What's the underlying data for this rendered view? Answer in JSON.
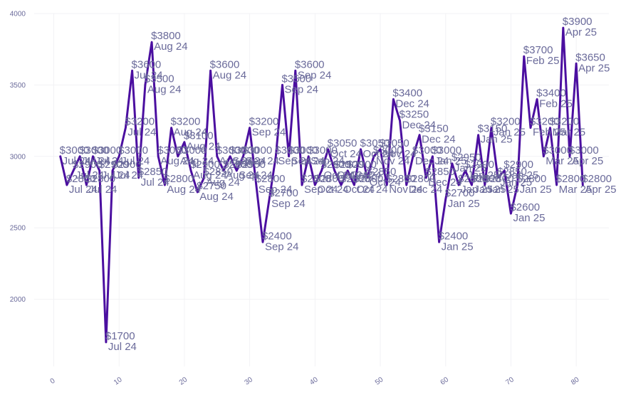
{
  "chart_data": {
    "type": "line",
    "title": "",
    "xlabel": "",
    "ylabel": "",
    "xlim": [
      -3,
      85
    ],
    "ylim": [
      1530,
      4000
    ],
    "grid": true,
    "xticks": [
      0,
      10,
      20,
      30,
      40,
      50,
      60,
      70,
      80
    ],
    "yticks": [
      2000,
      2500,
      3000,
      3500,
      4000
    ],
    "colors": {
      "line": "#4b0fa0",
      "label": "#6a6a9a",
      "grid": "#f2f2f5"
    },
    "series": [
      {
        "x": [
          1,
          2,
          3,
          4,
          5,
          6,
          7,
          8,
          9,
          10,
          11,
          12,
          13,
          14,
          15,
          16,
          17,
          18,
          19,
          20,
          21,
          22,
          23,
          24,
          25,
          26,
          27,
          28,
          29,
          30,
          31,
          32,
          33,
          34,
          35,
          36,
          37,
          38,
          39,
          40,
          41,
          42,
          43,
          44,
          45,
          46,
          47,
          48,
          49,
          50,
          51,
          52,
          53,
          54,
          55,
          56,
          57,
          58,
          59,
          60,
          61,
          62,
          63,
          64,
          65,
          66,
          67,
          68,
          69,
          70,
          71,
          72,
          73,
          74,
          75,
          76,
          77,
          78,
          79,
          80,
          81
        ],
        "values": [
          3000,
          2800,
          2900,
          3000,
          2800,
          3000,
          2900,
          1700,
          2900,
          3000,
          3200,
          3600,
          2850,
          3500,
          3800,
          3000,
          2800,
          3200,
          3000,
          3100,
          2900,
          2750,
          2850,
          3600,
          3000,
          2900,
          3000,
          2900,
          3000,
          3200,
          2800,
          2400,
          2700,
          3000,
          3500,
          3000,
          3600,
          2800,
          3000,
          2800,
          2900,
          3050,
          2900,
          2800,
          2900,
          2800,
          3050,
          2850,
          3000,
          3050,
          2800,
          3400,
          3250,
          2800,
          3000,
          3150,
          2850,
          3000,
          2400,
          2700,
          2950,
          2800,
          2900,
          2800,
          3150,
          2800,
          3200,
          2850,
          2900,
          2600,
          2800,
          3700,
          3200,
          3400,
          3000,
          3200,
          2800,
          3900,
          3000,
          3650,
          2800
        ],
        "labels": [
          [
            "$3000",
            "Jul 24"
          ],
          [
            "$2800",
            "Jul 24"
          ],
          [
            "$2900",
            "Jul 24"
          ],
          [
            "$3000",
            "Jul 24"
          ],
          [
            "$2800",
            "Jul 24"
          ],
          [
            "$3000",
            "Jul 24"
          ],
          [
            "$2900",
            "Jul 24"
          ],
          [
            "$1700",
            "Jul 24"
          ],
          [
            "$2900",
            "Jul 24"
          ],
          [
            "$3000",
            "Jul 24"
          ],
          [
            "$3200",
            "Jul 24"
          ],
          [
            "$3600",
            "Jul 24"
          ],
          [
            "$2850",
            "Jul 24"
          ],
          [
            "$3500",
            "Aug 24"
          ],
          [
            "$3800",
            "Aug 24"
          ],
          [
            "$3000",
            "Aug 24"
          ],
          [
            "$2800",
            "Aug 24"
          ],
          [
            "$3200",
            "Aug 24"
          ],
          [
            "$3000",
            "Aug 24"
          ],
          [
            "$3100",
            "Aug 24"
          ],
          [
            "$2900",
            "Aug 24"
          ],
          [
            "$2750",
            "Aug 24"
          ],
          [
            "$2850",
            "Aug 24"
          ],
          [
            "$3600",
            "Aug 24"
          ],
          [
            "$3000",
            "Aug 24"
          ],
          [
            "$2900",
            "Aug 24"
          ],
          [
            "$3000",
            "Sep 24"
          ],
          [
            "$2900",
            "Sep 24"
          ],
          [
            "$3000",
            "Sep 24"
          ],
          [
            "$3200",
            "Sep 24"
          ],
          [
            "$2800",
            "Sep 24"
          ],
          [
            "$2400",
            "Sep 24"
          ],
          [
            "$2700",
            "Sep 24"
          ],
          [
            "$3000",
            "Sep 24"
          ],
          [
            "$3500",
            "Sep 24"
          ],
          [
            "$3000",
            "Sep 24"
          ],
          [
            "$3600",
            "Sep 24"
          ],
          [
            "$2800",
            "Sep 24"
          ],
          [
            "$3000",
            "Sep 24"
          ],
          [
            "$2800",
            "Oct 24"
          ],
          [
            "$2900",
            "Oct 24"
          ],
          [
            "$3050",
            "Oct 24"
          ],
          [
            "$2900",
            "Oct 24"
          ],
          [
            "$2800",
            "Oct 24"
          ],
          [
            "$2900",
            "Oct 24"
          ],
          [
            "$2800",
            "Oct 24"
          ],
          [
            "$3050",
            "Oct 24"
          ],
          [
            "$2850",
            "Oct 24"
          ],
          [
            "$3000",
            "Nov 24"
          ],
          [
            "$3050",
            "Nov 24"
          ],
          [
            "$2800",
            "Nov 24"
          ],
          [
            "$3400",
            "Dec 24"
          ],
          [
            "$3250",
            "Dec 24"
          ],
          [
            "$2800",
            "Dec 24"
          ],
          [
            "$3000",
            "Dec 24"
          ],
          [
            "$3150",
            "Dec 24"
          ],
          [
            "$2850",
            "Dec 24"
          ],
          [
            "$3000",
            "Jan 25"
          ],
          [
            "$2400",
            "Jan 25"
          ],
          [
            "$2700",
            "Jan 25"
          ],
          [
            "$2950",
            "Jan 25"
          ],
          [
            "$2800",
            "Jan 25"
          ],
          [
            "$2900",
            "Jan 25"
          ],
          [
            "$2800",
            "Jan 25"
          ],
          [
            "$3150",
            "Jan 25"
          ],
          [
            "$2800",
            "Jan 25"
          ],
          [
            "$3200",
            "Jan 25"
          ],
          [
            "$2850",
            "Jan 25"
          ],
          [
            "$2900",
            "Jan 25"
          ],
          [
            "$2600",
            "Jan 25"
          ],
          [
            "$2800",
            "Jan 25"
          ],
          [
            "$3700",
            "Feb 25"
          ],
          [
            "$3200",
            "Feb 25"
          ],
          [
            "$3400",
            "Feb 25"
          ],
          [
            "$3000",
            "Mar 25"
          ],
          [
            "$3200",
            "Mar 25"
          ],
          [
            "$2800",
            "Mar 25"
          ],
          [
            "$3900",
            "Apr 25"
          ],
          [
            "$3000",
            "Apr 25"
          ],
          [
            "$3650",
            "Apr 25"
          ],
          [
            "$2800",
            "Apr 25"
          ]
        ]
      }
    ]
  }
}
